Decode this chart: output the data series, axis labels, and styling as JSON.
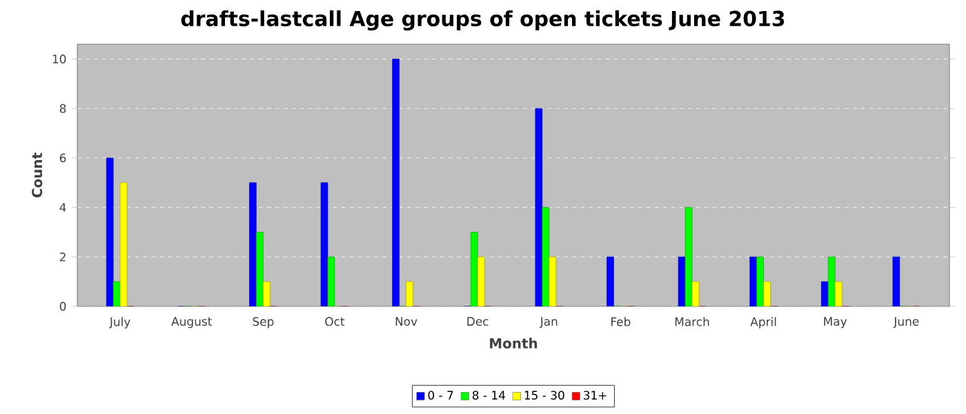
{
  "chart_data": {
    "type": "bar",
    "title": "drafts-lastcall Age groups of open tickets June 2013",
    "xlabel": "Month",
    "ylabel": "Count",
    "categories": [
      "July",
      "August",
      "Sep",
      "Oct",
      "Nov",
      "Dec",
      "Jan",
      "Feb",
      "March",
      "April",
      "May",
      "June"
    ],
    "series": [
      {
        "name": "0 - 7",
        "color": "#0000ff",
        "values": [
          6,
          0,
          5,
          5,
          10,
          0,
          8,
          2,
          2,
          2,
          1,
          2
        ]
      },
      {
        "name": "8 - 14",
        "color": "#00ff00",
        "values": [
          1,
          0,
          3,
          2,
          0,
          3,
          4,
          0,
          4,
          2,
          2,
          0
        ]
      },
      {
        "name": "15 - 30",
        "color": "#ffff00",
        "values": [
          5,
          0,
          1,
          0,
          1,
          2,
          2,
          0,
          1,
          1,
          1,
          0
        ]
      },
      {
        "name": "31+",
        "color": "#ff0000",
        "values": [
          0,
          0,
          0,
          0,
          0,
          0,
          0,
          0,
          0,
          0,
          0,
          0
        ]
      }
    ],
    "ylim": [
      0,
      10.6
    ],
    "yticks": [
      0,
      2,
      4,
      6,
      8,
      10
    ],
    "grid": "y",
    "legend": "bottom"
  }
}
